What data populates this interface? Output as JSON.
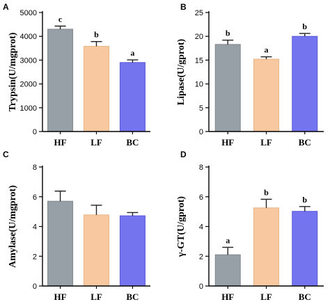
{
  "colors": {
    "HF": "#979fa7",
    "LF": "#f8c9a0",
    "BC": "#7474ee",
    "HF_stroke": "#80888f",
    "LF_stroke": "#e8b486",
    "BC_stroke": "#5858d8"
  },
  "chart_data": [
    {
      "type": "bar",
      "panel": "A",
      "categories": [
        "HF",
        "LF",
        "BC"
      ],
      "values": [
        4300,
        3580,
        2900
      ],
      "errors": [
        130,
        200,
        110
      ],
      "significance": [
        "c",
        "b",
        "a"
      ],
      "ylabel": "Trypsin(U/mgprot)",
      "ylim": [
        0,
        5000
      ],
      "yticks": [
        0,
        1000,
        2000,
        3000,
        4000,
        5000
      ],
      "ytick_labels": [
        "0",
        "1000",
        "2000",
        "3000",
        "4000",
        "5000"
      ]
    },
    {
      "type": "bar",
      "panel": "B",
      "categories": [
        "HF",
        "LF",
        "BC"
      ],
      "values": [
        18.3,
        15.2,
        20.0
      ],
      "errors": [
        0.9,
        0.5,
        0.6
      ],
      "significance": [
        "b",
        "a",
        "b"
      ],
      "ylabel": "Lipase(U/gprot)",
      "ylim": [
        0,
        25
      ],
      "yticks": [
        0,
        5,
        10,
        15,
        20,
        25
      ],
      "ytick_labels": [
        "0",
        "5",
        "10",
        "15",
        "20",
        "25"
      ]
    },
    {
      "type": "bar",
      "panel": "C",
      "categories": [
        "HF",
        "LF",
        "BC"
      ],
      "values": [
        5.7,
        4.78,
        4.72
      ],
      "errors": [
        0.68,
        0.65,
        0.22
      ],
      "significance": [
        "",
        "",
        ""
      ],
      "ylabel": "Amylase(U/mgprot)",
      "ylim": [
        0,
        8
      ],
      "yticks": [
        0,
        2,
        4,
        6,
        8
      ],
      "ytick_labels": [
        "0",
        "2",
        "4",
        "6",
        "8"
      ]
    },
    {
      "type": "bar",
      "panel": "D",
      "categories": [
        "HF",
        "LF",
        "BC"
      ],
      "values": [
        2.1,
        5.25,
        5.02
      ],
      "errors": [
        0.5,
        0.58,
        0.32
      ],
      "significance": [
        "a",
        "b",
        "b"
      ],
      "ylabel": "γ-GT(U/gprot)",
      "ylim": [
        0,
        8
      ],
      "yticks": [
        0,
        2,
        4,
        6,
        8
      ],
      "ytick_labels": [
        "0",
        "2",
        "4",
        "6",
        "8"
      ]
    }
  ]
}
